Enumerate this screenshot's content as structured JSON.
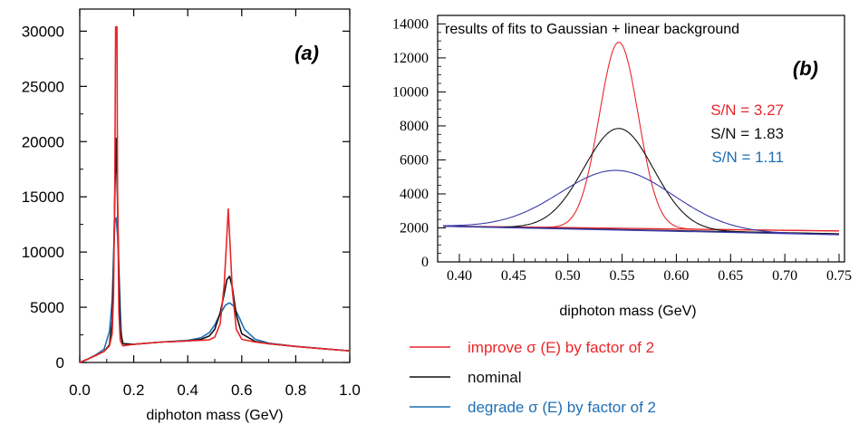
{
  "colors": {
    "improve": "#e8262a",
    "nominal": "#111111",
    "degrade": "#1f6fb5",
    "fit_blue": "#3a3aa8"
  },
  "legend": [
    {
      "label": "improve σ (E) by factor of 2",
      "color_key": "improve"
    },
    {
      "label": "nominal",
      "color_key": "nominal"
    },
    {
      "label": "degrade σ (E) by factor of 2",
      "color_key": "degrade"
    }
  ],
  "chart_data": [
    {
      "type": "line",
      "panel_label": "(a)",
      "xlabel": "diphoton mass (GeV)",
      "ylabel": "",
      "xlim": [
        0.0,
        1.0
      ],
      "ylim": [
        0,
        32000
      ],
      "x_ticks": [
        "0.0",
        "0.2",
        "0.4",
        "0.6",
        "0.8",
        "1.0"
      ],
      "y_ticks": [
        "0",
        "5000",
        "10000",
        "15000",
        "20000",
        "25000",
        "30000"
      ],
      "series": [
        {
          "name": "improve σ (E) by factor of 2",
          "color_key": "improve",
          "points": [
            [
              0.0,
              0
            ],
            [
              0.03,
              300
            ],
            [
              0.06,
              650
            ],
            [
              0.09,
              1000
            ],
            [
              0.11,
              1500
            ],
            [
              0.12,
              2600
            ],
            [
              0.125,
              6000
            ],
            [
              0.13,
              16000
            ],
            [
              0.133,
              30400
            ],
            [
              0.138,
              30400
            ],
            [
              0.14,
              16000
            ],
            [
              0.145,
              4500
            ],
            [
              0.15,
              2000
            ],
            [
              0.16,
              1500
            ],
            [
              0.2,
              1650
            ],
            [
              0.3,
              1850
            ],
            [
              0.4,
              1950
            ],
            [
              0.45,
              2000
            ],
            [
              0.48,
              2050
            ],
            [
              0.5,
              2300
            ],
            [
              0.52,
              3500
            ],
            [
              0.535,
              7000
            ],
            [
              0.545,
              11500
            ],
            [
              0.55,
              13900
            ],
            [
              0.555,
              11500
            ],
            [
              0.565,
              6500
            ],
            [
              0.58,
              3000
            ],
            [
              0.6,
              2100
            ],
            [
              0.65,
              1850
            ],
            [
              0.7,
              1700
            ],
            [
              0.8,
              1450
            ],
            [
              0.9,
              1250
            ],
            [
              1.0,
              1050
            ]
          ]
        },
        {
          "name": "nominal",
          "color_key": "nominal",
          "points": [
            [
              0.0,
              0
            ],
            [
              0.03,
              300
            ],
            [
              0.06,
              650
            ],
            [
              0.09,
              1000
            ],
            [
              0.11,
              1600
            ],
            [
              0.12,
              3800
            ],
            [
              0.125,
              8500
            ],
            [
              0.13,
              15000
            ],
            [
              0.135,
              20300
            ],
            [
              0.14,
              14500
            ],
            [
              0.145,
              8000
            ],
            [
              0.15,
              2900
            ],
            [
              0.16,
              1700
            ],
            [
              0.2,
              1650
            ],
            [
              0.3,
              1850
            ],
            [
              0.4,
              1950
            ],
            [
              0.45,
              2100
            ],
            [
              0.48,
              2400
            ],
            [
              0.5,
              3000
            ],
            [
              0.52,
              4500
            ],
            [
              0.535,
              6200
            ],
            [
              0.545,
              7500
            ],
            [
              0.555,
              7800
            ],
            [
              0.565,
              6800
            ],
            [
              0.58,
              4300
            ],
            [
              0.6,
              2600
            ],
            [
              0.65,
              1900
            ],
            [
              0.7,
              1700
            ],
            [
              0.8,
              1450
            ],
            [
              0.9,
              1250
            ],
            [
              1.0,
              1050
            ]
          ]
        },
        {
          "name": "degrade σ (E) by factor of 2",
          "color_key": "degrade",
          "points": [
            [
              0.0,
              0
            ],
            [
              0.03,
              300
            ],
            [
              0.06,
              700
            ],
            [
              0.09,
              1200
            ],
            [
              0.11,
              2800
            ],
            [
              0.12,
              5600
            ],
            [
              0.125,
              9500
            ],
            [
              0.13,
              12700
            ],
            [
              0.135,
              13100
            ],
            [
              0.14,
              11500
            ],
            [
              0.145,
              8500
            ],
            [
              0.15,
              4700
            ],
            [
              0.155,
              2200
            ],
            [
              0.16,
              1700
            ],
            [
              0.2,
              1650
            ],
            [
              0.3,
              1850
            ],
            [
              0.4,
              2000
            ],
            [
              0.45,
              2250
            ],
            [
              0.48,
              2700
            ],
            [
              0.5,
              3400
            ],
            [
              0.52,
              4400
            ],
            [
              0.54,
              5200
            ],
            [
              0.555,
              5400
            ],
            [
              0.57,
              5100
            ],
            [
              0.59,
              4100
            ],
            [
              0.61,
              3000
            ],
            [
              0.65,
              2100
            ],
            [
              0.7,
              1750
            ],
            [
              0.8,
              1450
            ],
            [
              0.9,
              1250
            ],
            [
              1.0,
              1050
            ]
          ]
        }
      ]
    },
    {
      "type": "line",
      "panel_label": "(b)",
      "title": "results of fits to Gaussian + linear background",
      "xlabel": "diphoton mass (GeV)",
      "ylabel": "",
      "xlim": [
        0.38,
        0.755
      ],
      "ylim": [
        0,
        14500
      ],
      "x_ticks": [
        "0.40",
        "0.45",
        "0.50",
        "0.55",
        "0.60",
        "0.65",
        "0.70",
        "0.75"
      ],
      "y_ticks": [
        "0",
        "2000",
        "4000",
        "6000",
        "8000",
        "10000",
        "12000",
        "14000"
      ],
      "annotations": [
        {
          "text": "S/N = 3.27",
          "color_key": "improve"
        },
        {
          "text": "S/N = 1.83",
          "color_key": "nominal"
        },
        {
          "text": "S/N = 1.11",
          "color_key": "degrade"
        }
      ],
      "series": [
        {
          "name": "improve σ (E) by factor of 2",
          "color_key": "improve",
          "mean": 0.547,
          "sigma": 0.018,
          "amplitude": 10950,
          "background": [
            [
              0.385,
              2100
            ],
            [
              0.75,
              1820
            ]
          ]
        },
        {
          "name": "nominal",
          "color_key": "nominal",
          "mean": 0.547,
          "sigma": 0.032,
          "amplitude": 5950,
          "background": [
            [
              0.385,
              2100
            ],
            [
              0.75,
              1650
            ]
          ]
        },
        {
          "name": "degrade σ (E) by factor of 2",
          "color_key": "fit_blue",
          "mean": 0.545,
          "sigma": 0.052,
          "amplitude": 3500,
          "background": [
            [
              0.385,
              2100
            ],
            [
              0.75,
              1600
            ]
          ]
        }
      ]
    }
  ]
}
